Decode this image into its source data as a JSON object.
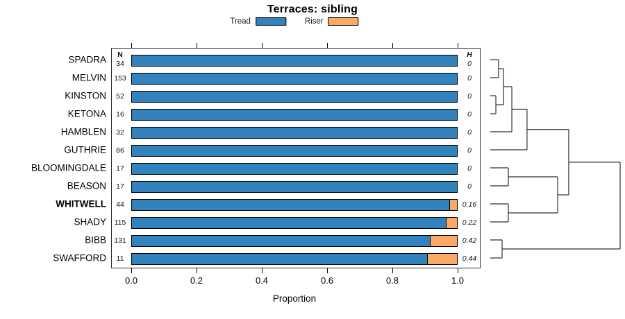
{
  "title": "Terraces: sibling",
  "legend": {
    "items": [
      {
        "label": "Tread",
        "color": "#3182BD"
      },
      {
        "label": "Riser",
        "color": "#FAAA64"
      }
    ]
  },
  "columns": {
    "n_header": "N",
    "h_header": "H"
  },
  "axis": {
    "label": "Proportion",
    "ticks": [
      "0.0",
      "0.2",
      "0.4",
      "0.6",
      "0.8",
      "1.0"
    ],
    "min": 0,
    "max": 1
  },
  "chart_data": {
    "type": "bar",
    "orientation": "horizontal",
    "stacked": true,
    "title": "Terraces: sibling",
    "xlabel": "Proportion",
    "xlim": [
      0,
      1
    ],
    "grid": false,
    "legend_position": "top",
    "series_names": [
      "Tread",
      "Riser"
    ],
    "colors": {
      "tread": "#3182BD",
      "riser": "#FAAA64",
      "bar_border": "#000000"
    },
    "rows": [
      {
        "label": "SPADRA",
        "n": 34,
        "tread": 1.0,
        "riser": 0.0,
        "h": "0",
        "bold": false
      },
      {
        "label": "MELVIN",
        "n": 153,
        "tread": 1.0,
        "riser": 0.0,
        "h": "0",
        "bold": false
      },
      {
        "label": "KINSTON",
        "n": 52,
        "tread": 1.0,
        "riser": 0.0,
        "h": "0",
        "bold": false
      },
      {
        "label": "KETONA",
        "n": 16,
        "tread": 1.0,
        "riser": 0.0,
        "h": "0",
        "bold": false
      },
      {
        "label": "HAMBLEN",
        "n": 32,
        "tread": 1.0,
        "riser": 0.0,
        "h": "0",
        "bold": false
      },
      {
        "label": "GUTHRIE",
        "n": 86,
        "tread": 1.0,
        "riser": 0.0,
        "h": "0",
        "bold": false
      },
      {
        "label": "BLOOMINGDALE",
        "n": 17,
        "tread": 1.0,
        "riser": 0.0,
        "h": "0",
        "bold": false
      },
      {
        "label": "BEASON",
        "n": 17,
        "tread": 1.0,
        "riser": 0.0,
        "h": "0",
        "bold": false
      },
      {
        "label": "WHITWELL",
        "n": 44,
        "tread": 0.977,
        "riser": 0.023,
        "h": "0.16",
        "bold": true
      },
      {
        "label": "SHADY",
        "n": 115,
        "tread": 0.965,
        "riser": 0.035,
        "h": "0.22",
        "bold": false
      },
      {
        "label": "BIBB",
        "n": 131,
        "tread": 0.916,
        "riser": 0.084,
        "h": "0.42",
        "bold": false
      },
      {
        "label": "SWAFFORD",
        "n": 11,
        "tread": 0.909,
        "riser": 0.091,
        "h": "0.44",
        "bold": false
      }
    ],
    "dendrogram": {
      "leaf_order": [
        "SPADRA",
        "MELVIN",
        "KINSTON",
        "KETONA",
        "HAMBLEN",
        "GUTHRIE",
        "BLOOMINGDALE",
        "BEASON",
        "WHITWELL",
        "SHADY",
        "BIBB",
        "SWAFFORD"
      ],
      "merges": [
        {
          "id": "m1",
          "a": "SPADRA",
          "b": "MELVIN",
          "h": 0.064
        },
        {
          "id": "m2",
          "a": "KINSTON",
          "b": "KETONA",
          "h": 0.043
        },
        {
          "id": "m3",
          "a": "m1",
          "b": "m2",
          "h": 0.102
        },
        {
          "id": "m4",
          "a": "m3",
          "b": "HAMBLEN",
          "h": 0.166
        },
        {
          "id": "m5",
          "a": "m4",
          "b": "GUTHRIE",
          "h": 0.283
        },
        {
          "id": "m6",
          "a": "BLOOMINGDALE",
          "b": "BEASON",
          "h": 0.139
        },
        {
          "id": "m7",
          "a": "WHITWELL",
          "b": "SHADY",
          "h": 0.139
        },
        {
          "id": "m8",
          "a": "m6",
          "b": "m7",
          "h": 0.519
        },
        {
          "id": "m9",
          "a": "m5",
          "b": "m8",
          "h": 0.604
        },
        {
          "id": "m10",
          "a": "BIBB",
          "b": "SWAFFORD",
          "h": 0.091
        },
        {
          "id": "m11",
          "a": "m9",
          "b": "m10",
          "h": 1.0
        }
      ]
    }
  }
}
